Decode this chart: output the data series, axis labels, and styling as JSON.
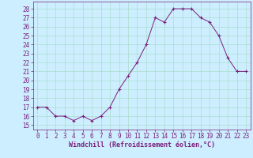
{
  "x": [
    0,
    1,
    2,
    3,
    4,
    5,
    6,
    7,
    8,
    9,
    10,
    11,
    12,
    13,
    14,
    15,
    16,
    17,
    18,
    19,
    20,
    21,
    22,
    23
  ],
  "y": [
    17,
    17,
    16,
    16,
    15.5,
    16,
    15.5,
    16,
    17,
    19,
    20.5,
    22,
    24,
    27,
    26.5,
    28,
    28,
    28,
    27,
    26.5,
    25,
    22.5,
    21,
    21
  ],
  "line_color": "#7B1F7B",
  "marker": "+",
  "marker_color": "#7B1F7B",
  "bg_color": "#cceeff",
  "grid_color": "#aaddcc",
  "xlabel": "Windchill (Refroidissement éolien,°C)",
  "xlabel_color": "#7B1F7B",
  "xlabel_fontsize": 6,
  "tick_color": "#7B1F7B",
  "tick_fontsize": 5.5,
  "ylim": [
    14.5,
    28.8
  ],
  "xlim": [
    -0.5,
    23.5
  ],
  "yticks": [
    15,
    16,
    17,
    18,
    19,
    20,
    21,
    22,
    23,
    24,
    25,
    26,
    27,
    28
  ],
  "xticks": [
    0,
    1,
    2,
    3,
    4,
    5,
    6,
    7,
    8,
    9,
    10,
    11,
    12,
    13,
    14,
    15,
    16,
    17,
    18,
    19,
    20,
    21,
    22,
    23
  ],
  "xtick_labels": [
    "0",
    "1",
    "2",
    "3",
    "4",
    "5",
    "6",
    "7",
    "8",
    "9",
    "10",
    "11",
    "12",
    "13",
    "14",
    "15",
    "16",
    "17",
    "18",
    "19",
    "20",
    "21",
    "22",
    "23"
  ]
}
